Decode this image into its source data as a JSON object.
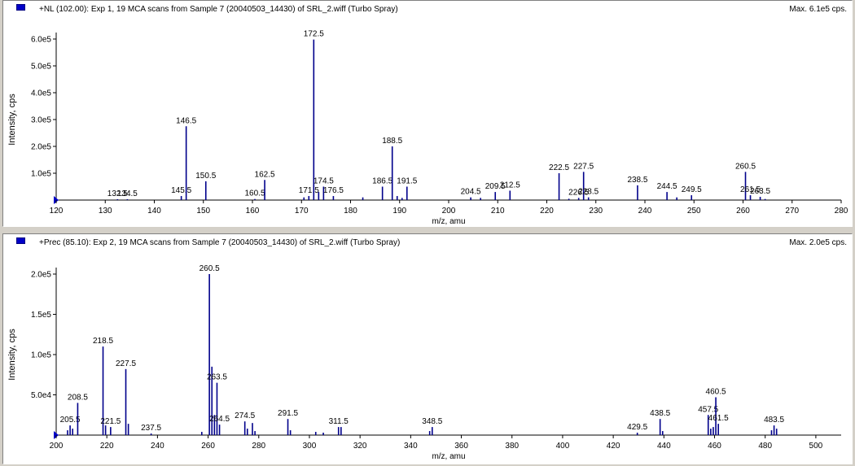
{
  "panels": [
    {
      "title": "+NL (102.00): Exp 1, 19 MCA scans from Sample 7 (20040503_14430) of SRL_2.wiff (Turbo Spray)",
      "max_label": "Max. 6.1e5 cps."
    },
    {
      "title": "+Prec (85.10): Exp 2, 19 MCA scans from Sample 7 (20040503_14430) of SRL_2.wiff (Turbo Spray)",
      "max_label": "Max. 2.0e5 cps."
    }
  ],
  "colors": {
    "peak": "#00008b",
    "text": "#000000",
    "background": "#ffffff"
  },
  "chart_data": [
    {
      "type": "bar",
      "xlabel": "m/z, amu",
      "ylabel": "Intensity, cps",
      "xlim": [
        120,
        280
      ],
      "ylim": [
        0,
        600000
      ],
      "x_ticks": [
        120,
        130,
        140,
        150,
        160,
        170,
        180,
        190,
        200,
        210,
        220,
        230,
        240,
        250,
        260,
        270,
        280
      ],
      "y_ticks": [
        {
          "value": 100000,
          "label": "1.0e5"
        },
        {
          "value": 200000,
          "label": "2.0e5"
        },
        {
          "value": 300000,
          "label": "3.0e5"
        },
        {
          "value": 400000,
          "label": "4.0e5"
        },
        {
          "value": 500000,
          "label": "5.0e5"
        },
        {
          "value": 600000,
          "label": "6.0e5"
        }
      ],
      "peaks": [
        {
          "x": 132.5,
          "y": 3000,
          "label": "132.5"
        },
        {
          "x": 134.5,
          "y": 3000,
          "label": "134.5"
        },
        {
          "x": 145.5,
          "y": 15000,
          "label": "145.5"
        },
        {
          "x": 146.5,
          "y": 275000,
          "label": "146.5"
        },
        {
          "x": 150.5,
          "y": 70000,
          "label": "150.5"
        },
        {
          "x": 160.5,
          "y": 4000,
          "label": "160.5"
        },
        {
          "x": 162.5,
          "y": 75000,
          "label": "162.5"
        },
        {
          "x": 170.5,
          "y": 10000
        },
        {
          "x": 171.5,
          "y": 15000,
          "label": "171.5"
        },
        {
          "x": 172.5,
          "y": 598000,
          "label": "172.5"
        },
        {
          "x": 173.5,
          "y": 30000
        },
        {
          "x": 174.5,
          "y": 50000,
          "label": "174.5"
        },
        {
          "x": 176.5,
          "y": 15000,
          "label": "176.5"
        },
        {
          "x": 182.5,
          "y": 10000
        },
        {
          "x": 186.5,
          "y": 50000,
          "label": "186.5"
        },
        {
          "x": 188.5,
          "y": 200000,
          "label": "188.5"
        },
        {
          "x": 189.5,
          "y": 15000
        },
        {
          "x": 190.5,
          "y": 8000
        },
        {
          "x": 191.5,
          "y": 50000,
          "label": "191.5"
        },
        {
          "x": 204.5,
          "y": 10000,
          "label": "204.5"
        },
        {
          "x": 206.5,
          "y": 8000
        },
        {
          "x": 209.5,
          "y": 30000,
          "label": "209.5"
        },
        {
          "x": 212.5,
          "y": 35000,
          "label": "212.5"
        },
        {
          "x": 222.5,
          "y": 100000,
          "label": "222.5"
        },
        {
          "x": 224.5,
          "y": 5000
        },
        {
          "x": 226.5,
          "y": 8000,
          "label": "226.5"
        },
        {
          "x": 227.5,
          "y": 105000,
          "label": "227.5"
        },
        {
          "x": 228.5,
          "y": 10000,
          "label": "228.5"
        },
        {
          "x": 238.5,
          "y": 55000,
          "label": "238.5"
        },
        {
          "x": 244.5,
          "y": 30000,
          "label": "244.5"
        },
        {
          "x": 246.5,
          "y": 10000
        },
        {
          "x": 249.5,
          "y": 18000,
          "label": "249.5"
        },
        {
          "x": 260.5,
          "y": 105000,
          "label": "260.5"
        },
        {
          "x": 261.5,
          "y": 18000,
          "label": "261.5"
        },
        {
          "x": 263.5,
          "y": 12000,
          "label": "263.5"
        },
        {
          "x": 264.5,
          "y": 4000
        }
      ]
    },
    {
      "type": "bar",
      "xlabel": "m/z, amu",
      "ylabel": "Intensity, cps",
      "xlim": [
        200,
        510
      ],
      "ylim": [
        0,
        200000
      ],
      "x_ticks": [
        200,
        220,
        240,
        260,
        280,
        300,
        320,
        340,
        360,
        380,
        400,
        420,
        440,
        460,
        480,
        500
      ],
      "y_ticks": [
        {
          "value": 50000,
          "label": "5.0e4"
        },
        {
          "value": 100000,
          "label": "1.0e5"
        },
        {
          "value": 150000,
          "label": "1.5e5"
        },
        {
          "value": 200000,
          "label": "2.0e5"
        }
      ],
      "peaks": [
        {
          "x": 204.5,
          "y": 6000
        },
        {
          "x": 205.5,
          "y": 12000,
          "label": "205.5"
        },
        {
          "x": 206.5,
          "y": 8000
        },
        {
          "x": 208.5,
          "y": 40000,
          "label": "208.5"
        },
        {
          "x": 218.5,
          "y": 110000,
          "label": "218.5"
        },
        {
          "x": 219.5,
          "y": 12000
        },
        {
          "x": 221.5,
          "y": 10000,
          "label": "221.5"
        },
        {
          "x": 227.5,
          "y": 82000,
          "label": "227.5"
        },
        {
          "x": 228.5,
          "y": 14000
        },
        {
          "x": 237.5,
          "y": 2000,
          "label": "237.5"
        },
        {
          "x": 257.5,
          "y": 4000
        },
        {
          "x": 260.5,
          "y": 200000,
          "label": "260.5"
        },
        {
          "x": 261.5,
          "y": 85000
        },
        {
          "x": 262.5,
          "y": 25000
        },
        {
          "x": 263.5,
          "y": 65000,
          "label": "263.5"
        },
        {
          "x": 264.5,
          "y": 13000,
          "label": "264.5"
        },
        {
          "x": 274.5,
          "y": 17000,
          "label": "274.5"
        },
        {
          "x": 275.5,
          "y": 8000
        },
        {
          "x": 277.5,
          "y": 15000
        },
        {
          "x": 278.5,
          "y": 5000
        },
        {
          "x": 291.5,
          "y": 20000,
          "label": "291.5"
        },
        {
          "x": 292.5,
          "y": 6000
        },
        {
          "x": 302.5,
          "y": 4000
        },
        {
          "x": 305.5,
          "y": 3000
        },
        {
          "x": 311.5,
          "y": 10000,
          "label": "311.5"
        },
        {
          "x": 312.5,
          "y": 10000
        },
        {
          "x": 347.5,
          "y": 5000
        },
        {
          "x": 348.5,
          "y": 10000,
          "label": "348.5"
        },
        {
          "x": 429.5,
          "y": 3000,
          "label": "429.5"
        },
        {
          "x": 438.5,
          "y": 20000,
          "label": "438.5"
        },
        {
          "x": 439.5,
          "y": 5000
        },
        {
          "x": 457.5,
          "y": 25000,
          "label": "457.5"
        },
        {
          "x": 458.5,
          "y": 8000
        },
        {
          "x": 459.5,
          "y": 10000
        },
        {
          "x": 460.5,
          "y": 47000,
          "label": "460.5"
        },
        {
          "x": 461.5,
          "y": 14000,
          "label": "461.5"
        },
        {
          "x": 482.5,
          "y": 6000
        },
        {
          "x": 483.5,
          "y": 12000,
          "label": "483.5"
        },
        {
          "x": 484.5,
          "y": 8000
        }
      ]
    }
  ]
}
